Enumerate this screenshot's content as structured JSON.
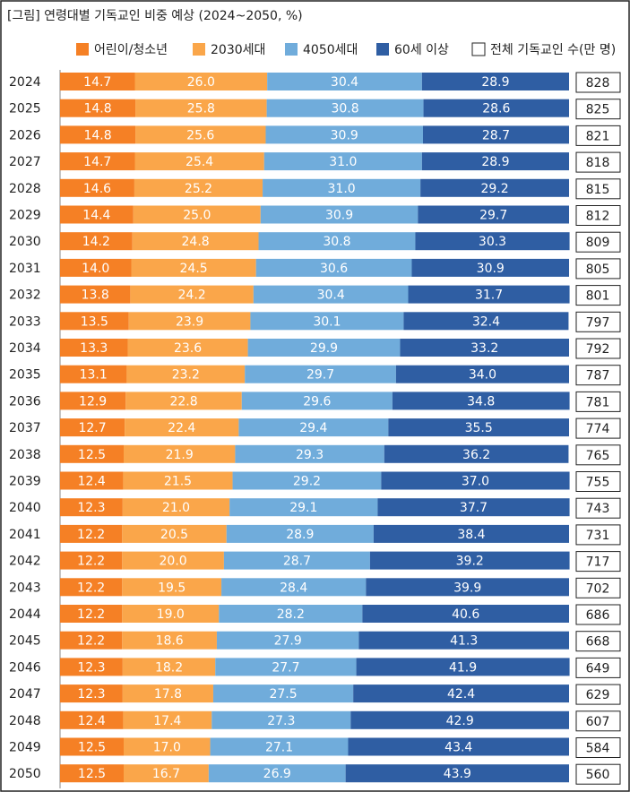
{
  "chart_data": {
    "type": "stacked-bar-horizontal",
    "title": "[그림] 연령대별 기독교인 비중 예상 (2024~2050, %)",
    "categories": [
      "2024",
      "2025",
      "2026",
      "2027",
      "2028",
      "2029",
      "2030",
      "2031",
      "2032",
      "2033",
      "2034",
      "2035",
      "2036",
      "2037",
      "2038",
      "2039",
      "2040",
      "2041",
      "2042",
      "2043",
      "2044",
      "2045",
      "2046",
      "2047",
      "2048",
      "2049",
      "2050"
    ],
    "xlim": [
      0,
      100
    ],
    "series": [
      {
        "name": "어린이/청소년",
        "color": "#f58025",
        "values": [
          14.7,
          14.8,
          14.8,
          14.7,
          14.6,
          14.4,
          14.2,
          14.0,
          13.8,
          13.5,
          13.3,
          13.1,
          12.9,
          12.7,
          12.5,
          12.4,
          12.3,
          12.2,
          12.2,
          12.2,
          12.2,
          12.2,
          12.3,
          12.3,
          12.4,
          12.5,
          12.5
        ],
        "value_labels": [
          "14.7",
          "14.8",
          "14.8",
          "14.7",
          "14.6",
          "14.4",
          "14.2",
          "14.0",
          "13.8",
          "13.5",
          "13.3",
          "13.1",
          "12.9",
          "12.7",
          "12.5",
          "12.4",
          "12.3",
          "12.2",
          "12.2",
          "12.2",
          "12.2",
          "12.2",
          "12.3",
          "12.3",
          "12.4",
          "12.5",
          "12.5"
        ]
      },
      {
        "name": "2030세대",
        "color": "#faa64a",
        "values": [
          26.0,
          25.8,
          25.6,
          25.4,
          25.2,
          25.0,
          24.8,
          24.5,
          24.2,
          23.9,
          23.6,
          23.2,
          22.8,
          22.4,
          21.9,
          21.5,
          21.0,
          20.5,
          20.0,
          19.5,
          19.0,
          18.6,
          18.2,
          17.8,
          17.4,
          17.0,
          16.7
        ],
        "value_labels": [
          "26.0",
          "25.8",
          "25.6",
          "25.4",
          "25.2",
          "25.0",
          "24.8",
          "24.5",
          "24.2",
          "23.9",
          "23.6",
          "23.2",
          "22.8",
          "22.4",
          "21.9",
          "21.5",
          "21.0",
          "20.5",
          "20.0",
          "19.5",
          "19.0",
          "18.6",
          "18.2",
          "17.8",
          "17.4",
          "17.0",
          "16.7"
        ]
      },
      {
        "name": "4050세대",
        "color": "#70acdb",
        "values": [
          30.4,
          30.8,
          30.9,
          31.0,
          31.0,
          30.9,
          30.8,
          30.6,
          30.4,
          30.1,
          29.9,
          29.7,
          29.6,
          29.4,
          29.3,
          29.2,
          29.1,
          28.9,
          28.7,
          28.4,
          28.2,
          27.9,
          27.7,
          27.5,
          27.3,
          27.1,
          26.9
        ],
        "value_labels": [
          "30.4",
          "30.8",
          "30.9",
          "31.0",
          "31.0",
          "30.9",
          "30.8",
          "30.6",
          "30.4",
          "30.1",
          "29.9",
          "29.7",
          "29.6",
          "29.4",
          "29.3",
          "29.2",
          "29.1",
          "28.9",
          "28.7",
          "28.4",
          "28.2",
          "27.9",
          "27.7",
          "27.5",
          "27.3",
          "27.1",
          "26.9"
        ]
      },
      {
        "name": "60세 이상",
        "color": "#2f5ea3",
        "values": [
          28.9,
          28.6,
          28.7,
          28.9,
          29.2,
          29.7,
          30.3,
          30.9,
          31.7,
          32.4,
          33.2,
          34.0,
          34.8,
          35.5,
          36.2,
          37.0,
          37.7,
          38.4,
          39.2,
          39.9,
          40.6,
          41.3,
          41.9,
          42.4,
          42.9,
          43.4,
          43.9
        ],
        "value_labels": [
          "28.9",
          "28.6",
          "28.7",
          "28.9",
          "29.2",
          "29.7",
          "30.3",
          "30.9",
          "31.7",
          "32.4",
          "33.2",
          "34.0",
          "34.8",
          "35.5",
          "36.2",
          "37.0",
          "37.7",
          "38.4",
          "39.2",
          "39.9",
          "40.6",
          "41.3",
          "41.9",
          "42.4",
          "42.9",
          "43.4",
          "43.9"
        ]
      }
    ],
    "totals": {
      "name": "전체 기독교인 수(만 명)",
      "color": "#ffffff",
      "values": [
        828,
        825,
        821,
        818,
        815,
        812,
        809,
        805,
        801,
        797,
        792,
        787,
        781,
        774,
        765,
        755,
        743,
        731,
        717,
        702,
        686,
        668,
        649,
        629,
        607,
        584,
        560
      ]
    }
  }
}
